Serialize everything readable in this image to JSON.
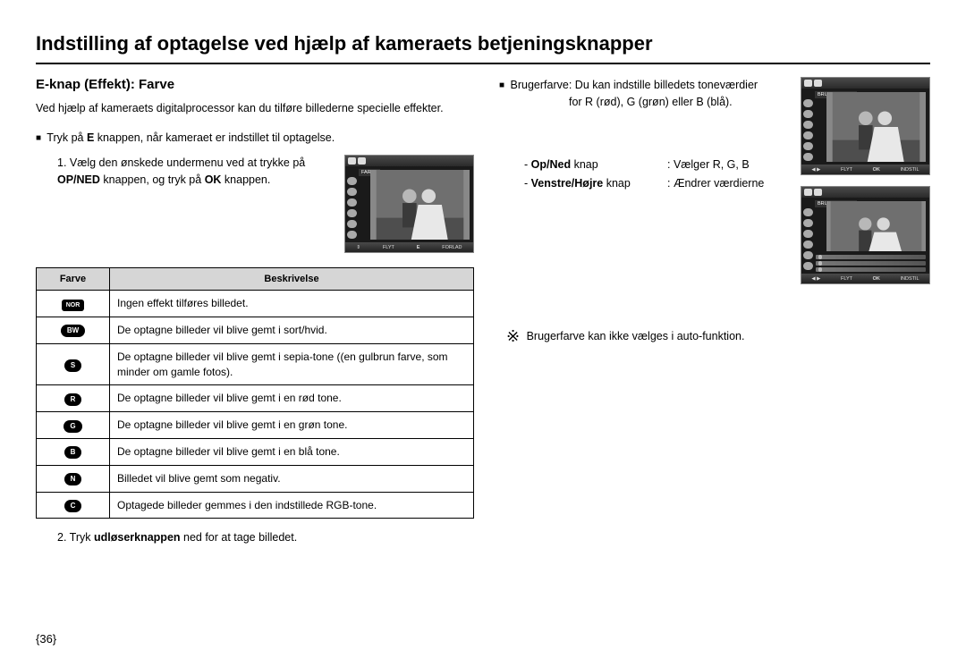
{
  "page_title": "Indstilling af optagelse ved hjælp af kameraets betjeningsknapper",
  "subtitle": "E-knap (Effekt): Farve",
  "intro": "Ved hjælp af kameraets digitalprocessor kan du tilføre billederne specielle effekter.",
  "press_e_line_pre": "Tryk på ",
  "press_e_label": "E",
  "press_e_line_post": " knappen, når kameraet er indstillet til optagelse.",
  "step1_pre": "1.  Vælg den ønskede undermenu ved at trykke på ",
  "step1_k1": "OP/NED",
  "step1_mid": " knappen, og tryk på ",
  "step1_k2": "OK",
  "step1_post": " knappen.",
  "table": {
    "header_col1": "Farve",
    "header_col2": "Beskrivelse",
    "rows": [
      {
        "icon": "NOR",
        "icon_type": "rect",
        "desc": "Ingen effekt tilføres billedet."
      },
      {
        "icon": "BW",
        "icon_type": "pill",
        "desc": "De optagne billeder vil blive gemt i sort/hvid."
      },
      {
        "icon": "S",
        "icon_type": "pill",
        "desc": "De optagne billeder vil blive gemt i sepia-tone ((en gulbrun farve, som minder om gamle fotos)."
      },
      {
        "icon": "R",
        "icon_type": "pill",
        "desc": "De optagne billeder vil blive gemt i en rød tone."
      },
      {
        "icon": "G",
        "icon_type": "pill",
        "desc": "De optagne billeder vil blive gemt i en grøn tone."
      },
      {
        "icon": "B",
        "icon_type": "pill",
        "desc": "De optagne billeder vil blive gemt i en blå tone."
      },
      {
        "icon": "N",
        "icon_type": "pill",
        "desc": "Billedet vil blive gemt som negativ."
      },
      {
        "icon": "C",
        "icon_type": "pill",
        "desc": "Optagede billeder gemmes i den indstillede RGB-tone."
      }
    ]
  },
  "step2_pre": "2.  Tryk ",
  "step2_k": "udløserknappen",
  "step2_post": " ned for at tage billedet.",
  "page_number": "{36}",
  "right": {
    "usercolor_label": "Brugerfarve:",
    "usercolor_desc_l1": "Du kan indstille billedets toneværdier",
    "usercolor_desc_l2": "for R (rød), G (grøn) eller B (blå).",
    "keys": {
      "dash1": "-   ",
      "upDown_k": "Op/Ned",
      "upDown_post": " knap",
      "upDown_val": ": Vælger R, G, B",
      "dash2": "-   ",
      "lr_k": "Venstre/Højre",
      "lr_post": " knap",
      "lr_val": ": Ændrer værdierne"
    },
    "note": "Brugerfarve kan ikke vælges i auto-funktion."
  },
  "lcd": {
    "farve_label": "FARVE",
    "brugervalgt_label": "BRUGERVALGT",
    "flyt": "FLYT",
    "e": "E",
    "ok": "OK",
    "forlad": "FORLAD",
    "indstil": "INDSTIL",
    "arrows_ud": "⇕",
    "arrows_lr": "◀ ▶"
  }
}
